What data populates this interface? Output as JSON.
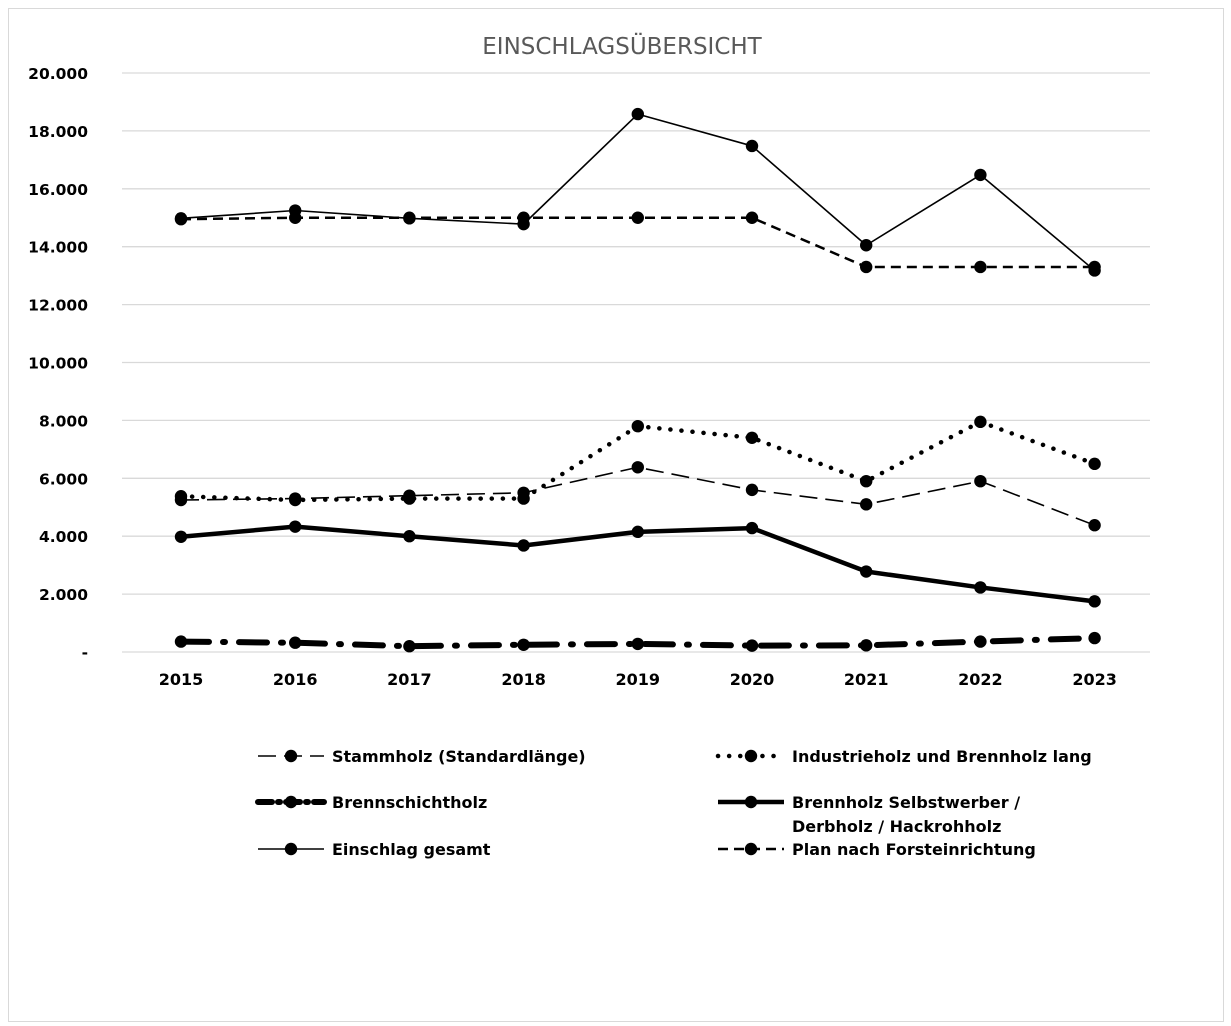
{
  "chart_data": {
    "type": "line",
    "title": "EINSCHLAGSÜBERSICHT",
    "xlabel": "",
    "ylabel": "",
    "x": [
      "2015",
      "2016",
      "2017",
      "2018",
      "2019",
      "2020",
      "2021",
      "2022",
      "2023"
    ],
    "ylim": [
      0,
      20000
    ],
    "yticks": [
      0,
      2000,
      4000,
      6000,
      8000,
      10000,
      12000,
      14000,
      16000,
      18000,
      20000
    ],
    "ytick_labels": [
      "-",
      "2.000",
      "4.000",
      "6.000",
      "8.000",
      "10.000",
      "12.000",
      "14.000",
      "16.000",
      "18.000",
      "20.000"
    ],
    "grid": true,
    "legend_position": "bottom",
    "series": [
      {
        "name": "Stammholz (Standardlänge)",
        "style": "longdash",
        "values": [
          5250,
          5300,
          5400,
          5500,
          6380,
          5600,
          5100,
          5900,
          4380
        ]
      },
      {
        "name": "Industrieholz und Brennholz lang",
        "style": "dotted",
        "values": [
          5380,
          5250,
          5300,
          5300,
          7800,
          7400,
          5900,
          7950,
          6500
        ]
      },
      {
        "name": "Brennschichtholz",
        "style": "dashdot-heavy",
        "values": [
          360,
          320,
          200,
          250,
          280,
          220,
          230,
          360,
          480
        ]
      },
      {
        "name": "Brennholz Selbstwerber /\nDerbholz / Hackrohholz",
        "name_lines": [
          "Brennholz Selbstwerber /",
          "Derbholz / Hackrohholz"
        ],
        "style": "solid-heavy",
        "values": [
          3980,
          4330,
          4000,
          3680,
          4150,
          4280,
          2780,
          2230,
          1750
        ]
      },
      {
        "name": "Einschlag gesamt",
        "style": "solid-thin",
        "values": [
          14980,
          15250,
          14980,
          14780,
          18580,
          17480,
          14050,
          16480,
          13180
        ]
      },
      {
        "name": "Plan nach Forsteinrichtung",
        "style": "shortdash",
        "values": [
          14950,
          15000,
          15000,
          15000,
          15000,
          15000,
          13300,
          13300,
          13300
        ]
      }
    ],
    "colors": {
      "line": "#000000",
      "grid": "#d9d9d9",
      "title": "#595959"
    }
  }
}
